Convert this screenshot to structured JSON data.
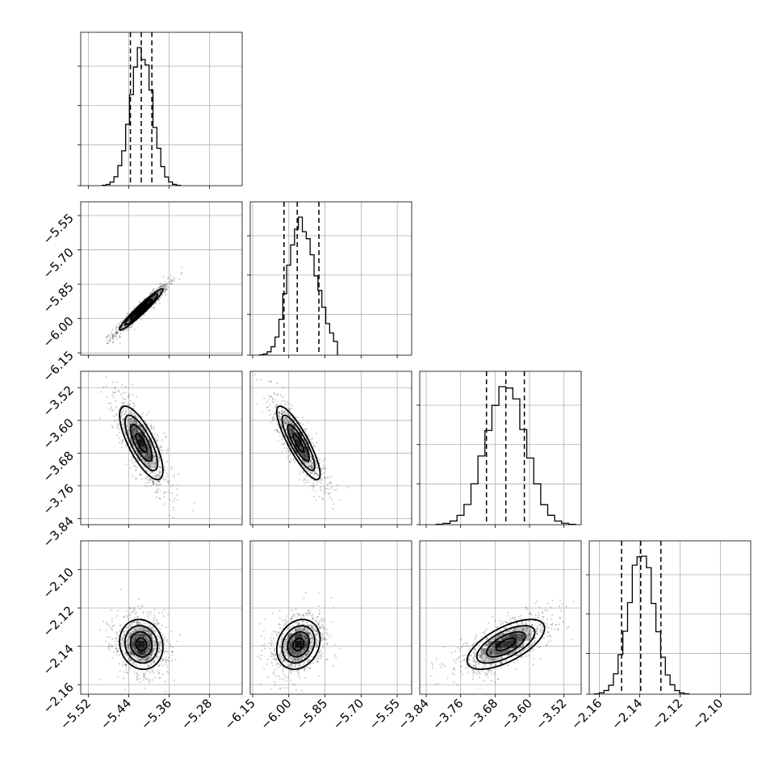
{
  "chart_data": {
    "type": "corner",
    "parameters": [
      {
        "ticks": [
          -5.52,
          -5.44,
          -5.36,
          -5.28
        ],
        "tick_labels": [
          "−5.52",
          "−5.44",
          "−5.36",
          "−5.28"
        ],
        "range": [
          -5.535,
          -5.215
        ],
        "mean": -5.415,
        "sd": 0.0215,
        "quantiles": [
          -5.4365,
          -5.415,
          -5.394
        ]
      },
      {
        "ticks": [
          -6.15,
          -6.0,
          -5.85,
          -5.7,
          -5.55
        ],
        "tick_labels": [
          "−6.15",
          "−6.00",
          "−5.85",
          "−5.70",
          "−5.55"
        ],
        "range": [
          -6.16,
          -5.49
        ],
        "mean": -5.96,
        "sd": 0.045,
        "quantiles": [
          -6.02,
          -5.965,
          -5.875
        ]
      },
      {
        "ticks": [
          -3.84,
          -3.76,
          -3.68,
          -3.6,
          -3.52
        ],
        "tick_labels": [
          "−3.84",
          "−3.76",
          "−3.68",
          "−3.60",
          "−3.52"
        ],
        "range": [
          -3.855,
          -3.48
        ],
        "mean": -3.655,
        "sd": 0.045,
        "quantiles": [
          -3.7,
          -3.655,
          -3.612
        ]
      },
      {
        "ticks": [
          -2.16,
          -2.14,
          -2.12,
          -2.1
        ],
        "tick_labels": [
          "−2.16",
          "−2.14",
          "−2.12",
          "−2.10"
        ],
        "range": [
          -2.165,
          -2.085
        ],
        "mean": -2.139,
        "sd": 0.0065,
        "quantiles": [
          -2.149,
          -2.1395,
          -2.1295
        ]
      }
    ],
    "correlations": {
      "1-0": 0.96,
      "2-0": -0.75,
      "2-1": -0.85,
      "3-0": -0.1,
      "3-1": 0.2,
      "3-2": 0.65
    },
    "title": "",
    "xlabel": "",
    "ylabel": "",
    "grid": true,
    "colors": {
      "points": "#000000",
      "density": "#000000",
      "lines": "#000000"
    }
  }
}
